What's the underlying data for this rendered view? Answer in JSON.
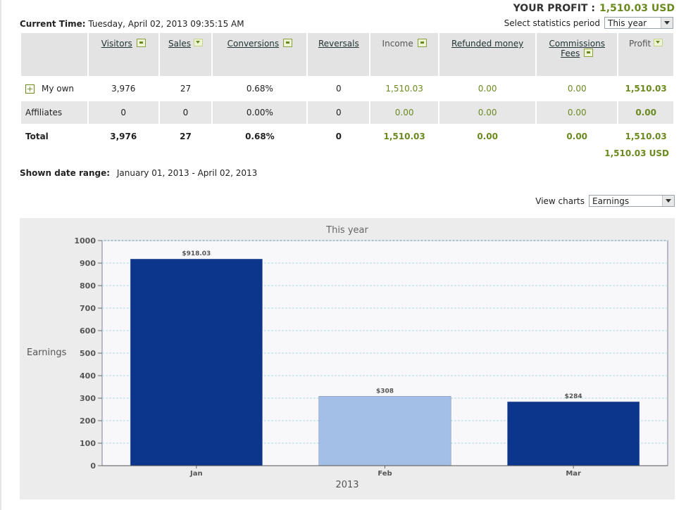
{
  "profit": {
    "label": "YOUR PROFIT :",
    "value": "1,510.03 USD"
  },
  "current_time": {
    "label": "Current Time:",
    "value": "Tuesday, April 02, 2013 09:35:15 AM"
  },
  "period": {
    "label": "Select statistics period",
    "selected": "This year"
  },
  "table": {
    "headers": [
      {
        "label": "Visitors",
        "link": true,
        "icon": "help-icon"
      },
      {
        "label": "Sales",
        "link": true,
        "icon": "sort-icon"
      },
      {
        "label": "Conversions",
        "link": true,
        "icon": "help-icon"
      },
      {
        "label": "Reversals",
        "link": true,
        "icon": ""
      },
      {
        "label": "Income",
        "link": false,
        "icon": "help-icon"
      },
      {
        "label": "Refunded money",
        "link": true,
        "icon": ""
      },
      {
        "label": "Commissions",
        "label2": "Fees",
        "link": true,
        "icon": "help-icon"
      },
      {
        "label": "Profit",
        "link": false,
        "icon": "sort-icon"
      }
    ],
    "rows": [
      {
        "label": "My own",
        "expand": "+",
        "cells": [
          "3,976",
          "27",
          "0.68%",
          "0",
          "1,510.03",
          "0.00",
          "0.00",
          "1,510.03"
        ]
      },
      {
        "label": "Affiliates",
        "cells": [
          "0",
          "0",
          "0.00%",
          "0",
          "0.00",
          "0.00",
          "0.00",
          "0.00"
        ]
      },
      {
        "label": "Total",
        "cells": [
          "3,976",
          "27",
          "0.68%",
          "0",
          "1,510.03",
          "0.00",
          "0.00",
          "1,510.03"
        ]
      }
    ],
    "sum": "1,510.03 USD"
  },
  "date_range": {
    "label": "Shown date range:",
    "value": "January 01, 2013 - April 02, 2013"
  },
  "view_charts": {
    "label": "View charts",
    "selected": "Earnings"
  },
  "colors": {
    "bar_dark": "#0b368c",
    "bar_light": "#a3bfe8",
    "green": "#6a8a1e"
  },
  "chart_data": {
    "type": "bar",
    "title": "This year",
    "xlabel": "2013",
    "ylabel": "Earnings",
    "categories": [
      "Jan",
      "Feb",
      "Mar"
    ],
    "values": [
      918.03,
      308,
      284
    ],
    "data_labels": [
      "$918.03",
      "$308",
      "$284"
    ],
    "ylim": [
      0,
      1000
    ],
    "yticks": [
      0,
      100,
      200,
      300,
      400,
      500,
      600,
      700,
      800,
      900,
      1000
    ],
    "grid": true,
    "bar_colors": [
      "#0b368c",
      "#a3bfe8",
      "#0b368c"
    ]
  }
}
